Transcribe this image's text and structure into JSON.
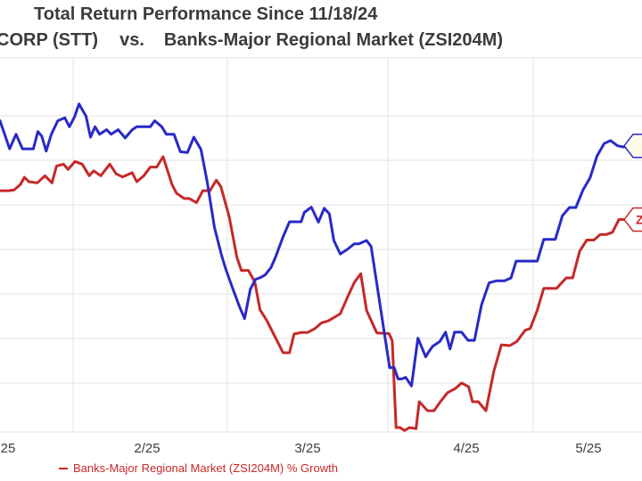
{
  "title": "Total Return Performance Since 11/18/24",
  "subtitle": {
    "left": "CORP (STT)",
    "vs": "vs.",
    "right": "Banks-Major Regional Market (ZSI204M)"
  },
  "legend": {
    "red_label": "Banks-Major Regional Market (ZSI204M) % Growth"
  },
  "colors": {
    "blue_series": "#2929c8",
    "red_series": "#c62828",
    "grid": "#e3e3e3",
    "text": "#3b3b3b"
  },
  "end_labels": {
    "blue": "",
    "red": "Z"
  },
  "chart_data": {
    "type": "line",
    "title": "Total Return Performance Since 11/18/24",
    "x_tick_labels": [
      "25",
      "2/25",
      "3/25",
      "4/25",
      "5/25"
    ],
    "x_range": [
      0,
      100
    ],
    "ylim": [
      0,
      100
    ],
    "grid": true,
    "legend_position": "bottom-left",
    "series": [
      {
        "key": "blue",
        "name": "",
        "color": "#2929c8",
        "x": [
          0,
          1.5,
          2.5,
          3.5,
          5.2,
          5.9,
          6.5,
          7.2,
          8,
          9,
          10.1,
          10.8,
          11.6,
          12.3,
          13.4,
          14.1,
          14.8,
          15.5,
          16.6,
          17.3,
          18.4,
          19.5,
          20.6,
          21.3,
          22.4,
          23.4,
          24.1,
          25.2,
          25.9,
          27.1,
          28.1,
          29.2,
          30.2,
          31.3,
          32.3,
          33.4,
          34.5,
          35.1,
          36.2,
          37.3,
          38.1,
          39,
          39.8,
          40.6,
          41.3,
          42.2,
          42.9,
          44.1,
          45.1,
          45.8,
          46.9,
          47.4,
          48.5,
          49.6,
          50.5,
          51.3,
          52,
          53,
          54.1,
          55.2,
          55.9,
          57.1,
          57.8,
          60.7,
          61.4,
          62,
          62.6,
          63.2,
          64.1,
          65.1,
          66.3,
          66.8,
          67.4,
          68.5,
          69.4,
          70.1,
          70.8,
          71.9,
          72.9,
          73.9,
          75,
          76.2,
          77.3,
          78.6,
          79.6,
          80.4,
          81.5,
          82.6,
          83.7,
          84.7,
          85.7,
          86.5,
          87.6,
          88.7,
          89.7,
          90.8,
          91.9,
          93,
          94.1,
          95.1,
          96.2,
          97.1,
          98.2,
          100
        ],
        "y": [
          83.2,
          75.7,
          79.6,
          75.7,
          75.7,
          80.3,
          79.1,
          75.1,
          79.6,
          83.2,
          84,
          81.6,
          84.2,
          87.7,
          84.4,
          78.8,
          81.6,
          79.6,
          80.8,
          79.6,
          80.8,
          78.6,
          80.8,
          81.6,
          81.6,
          81.6,
          83.2,
          81.6,
          79.6,
          79.6,
          74.9,
          74.7,
          78.8,
          75.5,
          66.6,
          54.7,
          47.3,
          43.9,
          38.6,
          33.5,
          30.3,
          38.2,
          40.8,
          41.3,
          42,
          43.9,
          46.7,
          52.2,
          56.2,
          56.2,
          56.2,
          58.7,
          60.1,
          56.1,
          59.8,
          58.3,
          51.2,
          47.6,
          48.8,
          50.3,
          50.3,
          51.2,
          49.6,
          17.2,
          17.2,
          14.2,
          14.2,
          14.6,
          12.3,
          25.1,
          20.1,
          21.5,
          22.9,
          24.2,
          26.7,
          22.2,
          26.7,
          26.7,
          24.5,
          24.5,
          34,
          39.9,
          40.4,
          40.4,
          41.2,
          45.7,
          45.7,
          45.7,
          45.7,
          51.5,
          51.5,
          51.5,
          57.8,
          60,
          60,
          64.7,
          67.9,
          73.8,
          77.1,
          77.9,
          76.5,
          76.2,
          76.5,
          76.5
        ]
      },
      {
        "key": "red",
        "name": "Banks-Major Regional Market (ZSI204M) % Growth",
        "color": "#c62828",
        "x": [
          0,
          1.3,
          2.2,
          3.2,
          3.8,
          4.5,
          5.8,
          7,
          8.1,
          8.8,
          9.9,
          10.6,
          11.7,
          12.8,
          13.9,
          14.6,
          15.7,
          17.1,
          18.1,
          19.1,
          20.6,
          21.3,
          22.4,
          23.4,
          24.4,
          25.4,
          26.8,
          27.5,
          28.7,
          29.5,
          30.6,
          31.6,
          32.7,
          33.7,
          34.4,
          35.7,
          36.9,
          37.6,
          38.7,
          39.7,
          40.5,
          41.6,
          42.5,
          44.1,
          45.1,
          45.8,
          46.9,
          47.9,
          49,
          50.1,
          51.1,
          51.9,
          53,
          54.1,
          55.2,
          56.2,
          57.1,
          58.7,
          60.6,
          61.1,
          61.7,
          62.3,
          63,
          63.8,
          64.8,
          65.3,
          66.6,
          67.6,
          68.6,
          69.7,
          70.9,
          71.9,
          73,
          73.6,
          74.5,
          75.7,
          76.9,
          78.1,
          79.4,
          80.5,
          81.8,
          82.6,
          83.7,
          84.7,
          85.8,
          86.7,
          88.2,
          89.2,
          90.3,
          91.4,
          92.5,
          93.5,
          94.5,
          95.4,
          96.4,
          97.4,
          98.5,
          100
        ],
        "y": [
          64.5,
          64.5,
          64.7,
          66.2,
          68.1,
          66.9,
          66.6,
          68.5,
          66.6,
          71.1,
          71.6,
          70.2,
          72.3,
          71.6,
          68.5,
          69.8,
          68.5,
          71.6,
          69,
          68.2,
          69.3,
          66.9,
          68.5,
          70.8,
          70.8,
          73.6,
          66.1,
          63.8,
          62.4,
          62.4,
          61.3,
          64.5,
          64.5,
          67.3,
          65.6,
          57.6,
          46.7,
          43.2,
          43.2,
          40.1,
          32.7,
          29.7,
          26.6,
          21.2,
          21.2,
          26.2,
          26.6,
          26.6,
          27.6,
          29.2,
          29.7,
          30.5,
          31.6,
          35.9,
          40,
          42.3,
          32.5,
          26.5,
          26.3,
          24.4,
          1.2,
          1.2,
          0.4,
          1.2,
          0.9,
          8.1,
          5.7,
          5.7,
          8.1,
          10.5,
          11.6,
          13.1,
          12.1,
          8.1,
          8.1,
          5.7,
          16.1,
          23.3,
          23.1,
          24.2,
          27.2,
          27.7,
          32.6,
          38.4,
          38.4,
          38.4,
          41.2,
          41.2,
          48.4,
          51.3,
          51.3,
          52.8,
          52.8,
          53.4,
          56.8,
          56.8,
          56.8,
          56.8
        ]
      }
    ]
  }
}
